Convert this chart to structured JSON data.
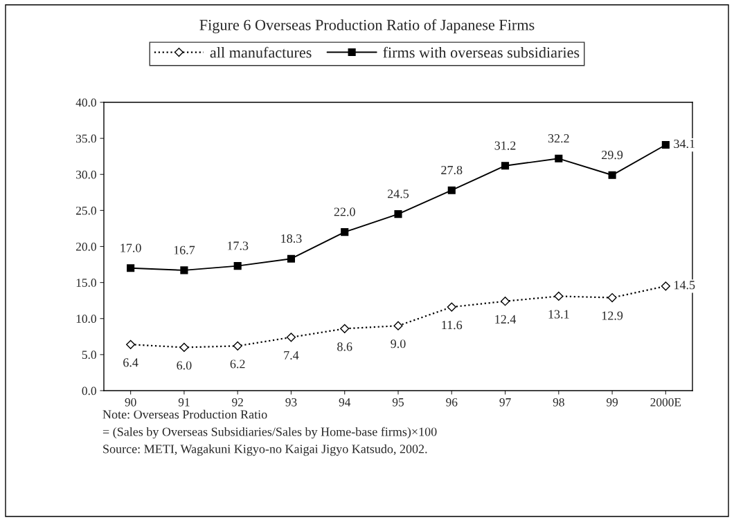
{
  "chart_data": {
    "type": "line",
    "title": "Figure 6 Overseas Production Ratio of Japanese Firms",
    "categories": [
      "90",
      "91",
      "92",
      "93",
      "94",
      "95",
      "96",
      "97",
      "98",
      "99",
      "2000E"
    ],
    "series": [
      {
        "name": "all manufactures",
        "color": "#000000",
        "marker": "diamond",
        "line_style": "dotted",
        "values": [
          6.4,
          6.0,
          6.2,
          7.4,
          8.6,
          9.0,
          11.6,
          12.4,
          13.1,
          12.9,
          14.5
        ],
        "value_labels": [
          "6.4",
          "6.0",
          "6.2",
          "7.4",
          "8.6",
          "9.0",
          "11.6",
          "12.4",
          "13.1",
          "12.9",
          "14.5"
        ]
      },
      {
        "name": "firms with overseas subsidiaries",
        "color": "#000000",
        "marker": "square",
        "line_style": "solid",
        "values": [
          17.0,
          16.7,
          17.3,
          18.3,
          22.0,
          24.5,
          27.8,
          31.2,
          32.2,
          29.9,
          34.1
        ],
        "value_labels": [
          "17.0",
          "16.7",
          "17.3",
          "18.3",
          "22.0",
          "24.5",
          "27.8",
          "31.2",
          "32.2",
          "29.9",
          "34.1"
        ]
      }
    ],
    "ylim": [
      0,
      40
    ],
    "yticks": [
      {
        "value": 0,
        "label": "0.0"
      },
      {
        "value": 5,
        "label": "5.0"
      },
      {
        "value": 10,
        "label": "10.0"
      },
      {
        "value": 15,
        "label": "15.0"
      },
      {
        "value": 20,
        "label": "20.0"
      },
      {
        "value": 25,
        "label": "25.0"
      },
      {
        "value": 30,
        "label": "30.0"
      },
      {
        "value": 35,
        "label": "35.0"
      },
      {
        "value": 40,
        "label": "40.0"
      }
    ],
    "grid": false,
    "legend": "top",
    "annotations": [
      "Note: Overseas Production Ratio",
      "= (Sales by Overseas Subsidiaries/Sales by Home-base firms)×100",
      "Source: METI, Wagakuni Kigyo-no Kaigai Jigyo Katsudo, 2002."
    ]
  }
}
